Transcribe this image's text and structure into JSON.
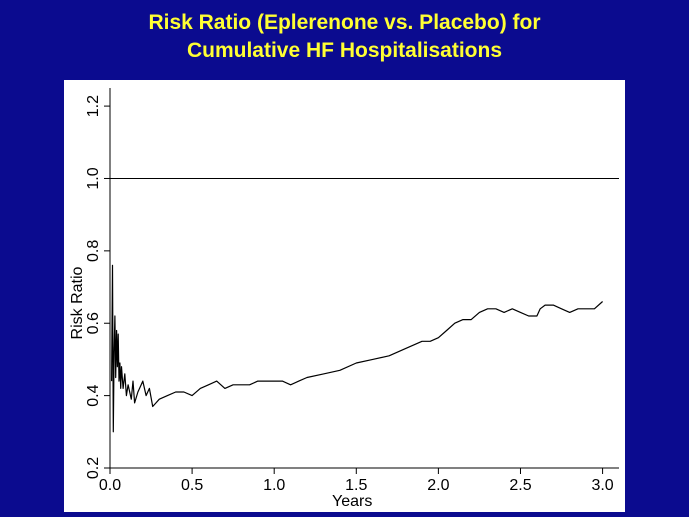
{
  "title": {
    "line1": "Risk Ratio (Eplerenone vs. Placebo) for",
    "line2": "Cumulative HF Hospitalisations"
  },
  "colors": {
    "background": "#0b0b8f",
    "title": "#ffff33",
    "panel": "#ffffff",
    "line": "#000000"
  },
  "chart_data": {
    "type": "line",
    "xlabel": "Years",
    "ylabel": "Risk Ratio",
    "xlim": [
      0.0,
      3.1
    ],
    "ylim": [
      0.2,
      1.25
    ],
    "xticks": [
      0.0,
      0.5,
      1.0,
      1.5,
      2.0,
      2.5,
      3.0
    ],
    "xtick_labels": [
      "0.0",
      "0.5",
      "1.0",
      "1.5",
      "2.0",
      "2.5",
      "3.0"
    ],
    "yticks": [
      0.2,
      0.4,
      0.6,
      0.8,
      1.0,
      1.2
    ],
    "ytick_labels": [
      "0.2",
      "0.4",
      "0.6",
      "0.8",
      "1.0",
      "1.2"
    ],
    "grid": false,
    "reference_line": {
      "y": 1.0
    },
    "series": [
      {
        "x": [
          0.01,
          0.015,
          0.02,
          0.025,
          0.03,
          0.035,
          0.04,
          0.045,
          0.05,
          0.055,
          0.06,
          0.065,
          0.07,
          0.08,
          0.09,
          0.1,
          0.11,
          0.12,
          0.13,
          0.14,
          0.15,
          0.17,
          0.19,
          0.2,
          0.22,
          0.24,
          0.26,
          0.28,
          0.3,
          0.35,
          0.4,
          0.45,
          0.5,
          0.55,
          0.6,
          0.65,
          0.7,
          0.75,
          0.8,
          0.85,
          0.9,
          0.95,
          1.0,
          1.05,
          1.1,
          1.15,
          1.2,
          1.3,
          1.4,
          1.5,
          1.6,
          1.7,
          1.8,
          1.9,
          1.95,
          2.0,
          2.05,
          2.1,
          2.15,
          2.2,
          2.25,
          2.3,
          2.35,
          2.4,
          2.45,
          2.5,
          2.55,
          2.6,
          2.62,
          2.65,
          2.7,
          2.75,
          2.8,
          2.85,
          2.9,
          2.95,
          3.0
        ],
        "values": [
          0.44,
          0.76,
          0.3,
          0.52,
          0.62,
          0.45,
          0.58,
          0.48,
          0.57,
          0.44,
          0.49,
          0.42,
          0.48,
          0.42,
          0.46,
          0.4,
          0.43,
          0.41,
          0.39,
          0.44,
          0.38,
          0.41,
          0.43,
          0.44,
          0.4,
          0.42,
          0.37,
          0.38,
          0.39,
          0.4,
          0.41,
          0.41,
          0.4,
          0.42,
          0.43,
          0.44,
          0.42,
          0.43,
          0.43,
          0.43,
          0.44,
          0.44,
          0.44,
          0.44,
          0.43,
          0.44,
          0.45,
          0.46,
          0.47,
          0.49,
          0.5,
          0.51,
          0.53,
          0.55,
          0.55,
          0.56,
          0.58,
          0.6,
          0.61,
          0.61,
          0.63,
          0.64,
          0.64,
          0.63,
          0.64,
          0.63,
          0.62,
          0.62,
          0.64,
          0.65,
          0.65,
          0.64,
          0.63,
          0.64,
          0.64,
          0.64,
          0.66
        ]
      }
    ]
  }
}
